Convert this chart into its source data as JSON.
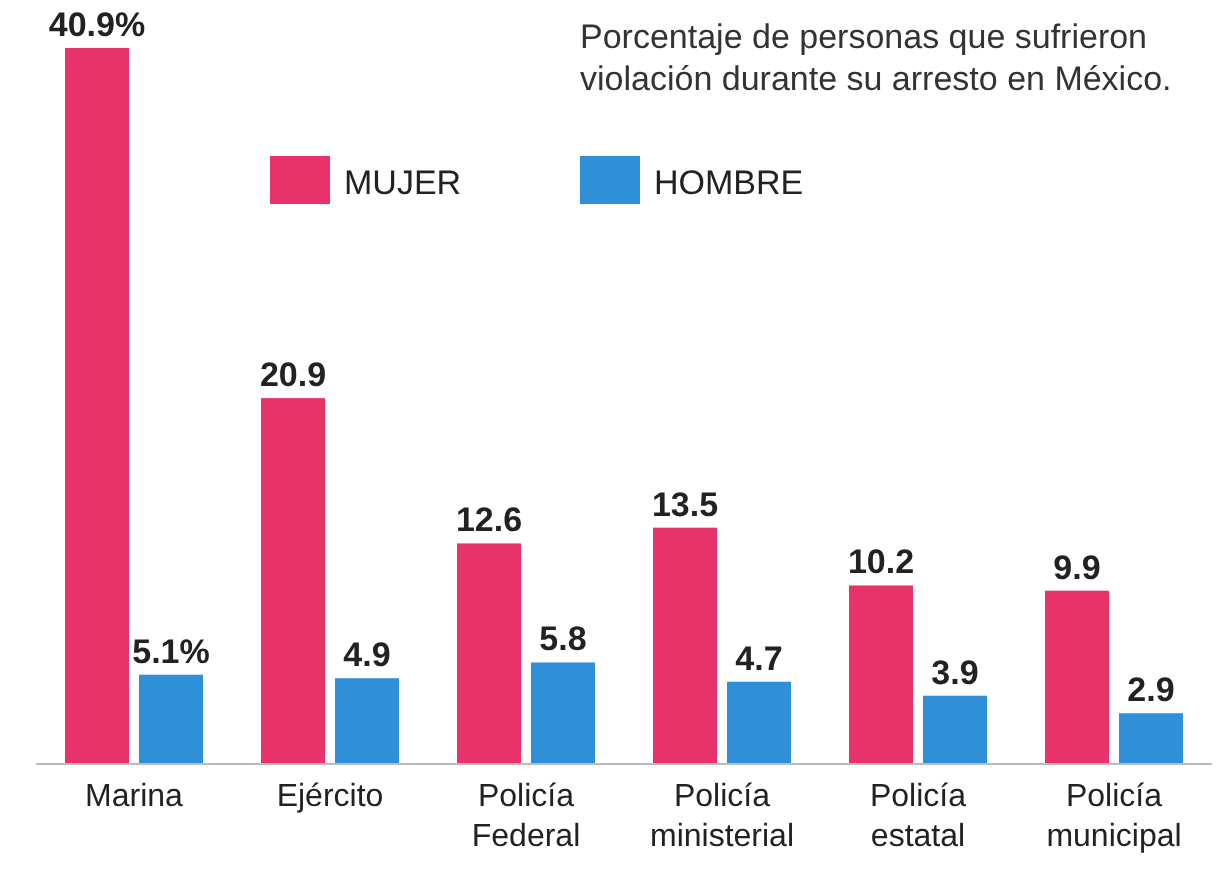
{
  "chart_data": {
    "type": "bar",
    "title": "Porcentaje de personas que sufrieron violación durante su arresto en México.",
    "categories": [
      "Marina",
      "Ejército",
      "Policía Federal",
      "Policía ministerial",
      "Policía estatal",
      "Policía municipal"
    ],
    "series": [
      {
        "name": "MUJER",
        "color": "#e8336a",
        "values": [
          40.9,
          20.9,
          12.6,
          13.5,
          10.2,
          9.9
        ],
        "value_labels": [
          "40.9%",
          "20.9",
          "12.6",
          "13.5",
          "10.2",
          "9.9"
        ]
      },
      {
        "name": "HOMBRE",
        "color": "#2f8fd8",
        "values": [
          5.1,
          4.9,
          5.8,
          4.7,
          3.9,
          2.9
        ],
        "value_labels": [
          "5.1%",
          "4.9",
          "5.8",
          "4.7",
          "3.9",
          "2.9"
        ]
      }
    ],
    "legend": "top"
  }
}
